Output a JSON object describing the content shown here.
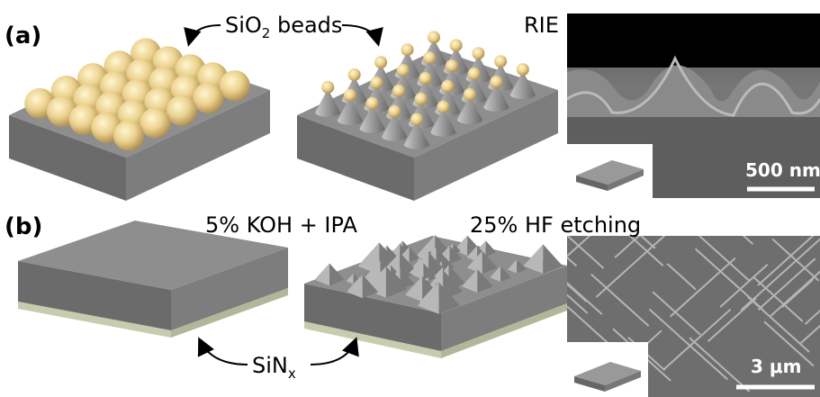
{
  "panel_a": {
    "label": "(a)",
    "beads_label": {
      "text": "SiO",
      "subscript": "2",
      "suffix": " beads"
    },
    "step_label": "RIE",
    "scale_bar": "500 nm"
  },
  "panel_b": {
    "label": "(b)",
    "step_label": "5% KOH + IPA",
    "step2_label": "25% HF etching",
    "layer_label": {
      "text": "SiN",
      "subscript": "x"
    },
    "scale_bar": "3 μm"
  }
}
